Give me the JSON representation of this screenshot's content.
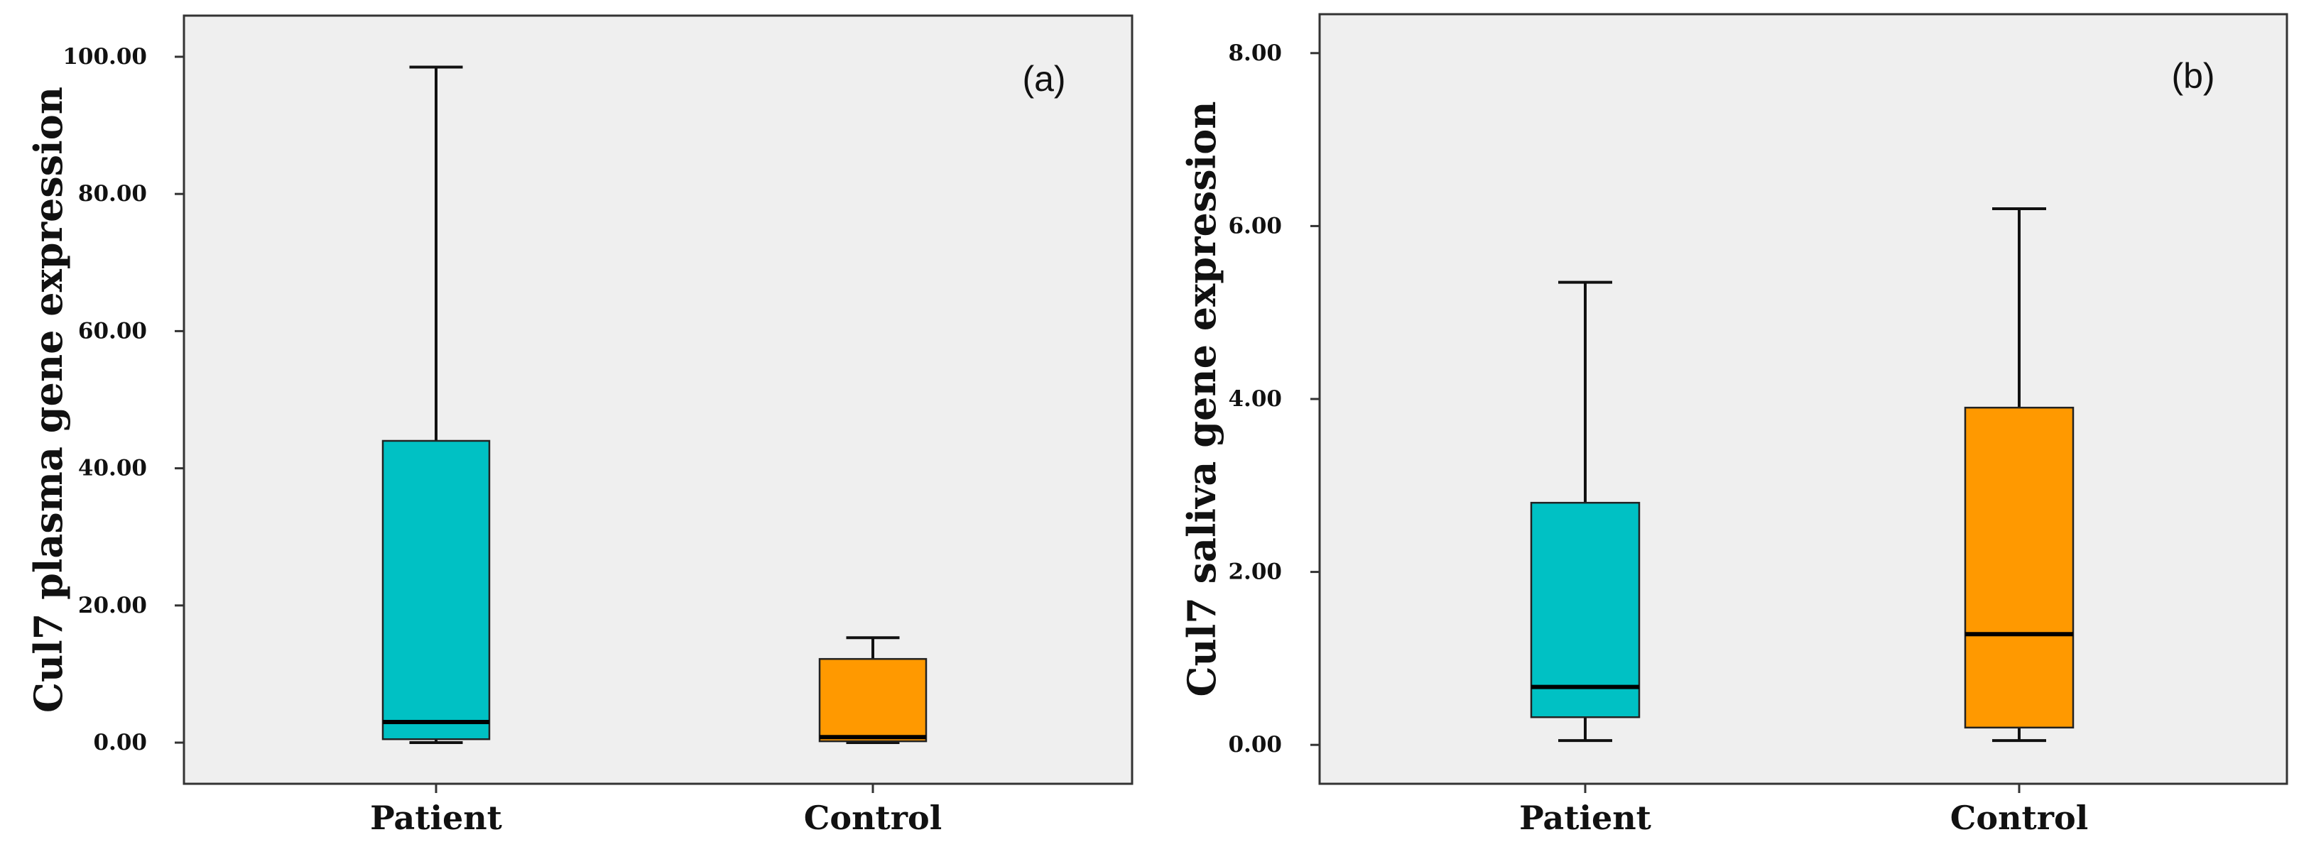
{
  "chart_data": [
    {
      "type": "boxplot",
      "panel_label": "(a)",
      "ylabel": "Cul7 plasma gene expression",
      "ylim": [
        -6,
        106
      ],
      "yticks": [
        0,
        20,
        40,
        60,
        80,
        100
      ],
      "ytick_labels": [
        "0.00",
        "20.00",
        "40.00",
        "60.00",
        "80.00",
        "100.00"
      ],
      "grid": false,
      "categories": [
        "Patient",
        "Control"
      ],
      "boxes": [
        {
          "category": "Patient",
          "min": 0.0,
          "q1": 0.5,
          "median": 3.0,
          "q3": 44.0,
          "max": 98.5,
          "color": "#00C1C4"
        },
        {
          "category": "Control",
          "min": 0.0,
          "q1": 0.2,
          "median": 0.8,
          "q3": 12.2,
          "max": 15.3,
          "color": "#FF9900"
        }
      ]
    },
    {
      "type": "boxplot",
      "panel_label": "(b)",
      "ylabel": "Cul7 saliva gene expression",
      "ylim": [
        -0.45,
        8.45
      ],
      "yticks": [
        0,
        2,
        4,
        6,
        8
      ],
      "ytick_labels": [
        "0.00",
        "2.00",
        "4.00",
        "6.00",
        "8.00"
      ],
      "grid": false,
      "categories": [
        "Patient",
        "Control"
      ],
      "boxes": [
        {
          "category": "Patient",
          "min": 0.05,
          "q1": 0.32,
          "median": 0.67,
          "q3": 2.8,
          "max": 5.35,
          "color": "#00C1C4"
        },
        {
          "category": "Control",
          "min": 0.05,
          "q1": 0.2,
          "median": 1.28,
          "q3": 3.9,
          "max": 6.2,
          "color": "#FF9900"
        }
      ]
    }
  ]
}
